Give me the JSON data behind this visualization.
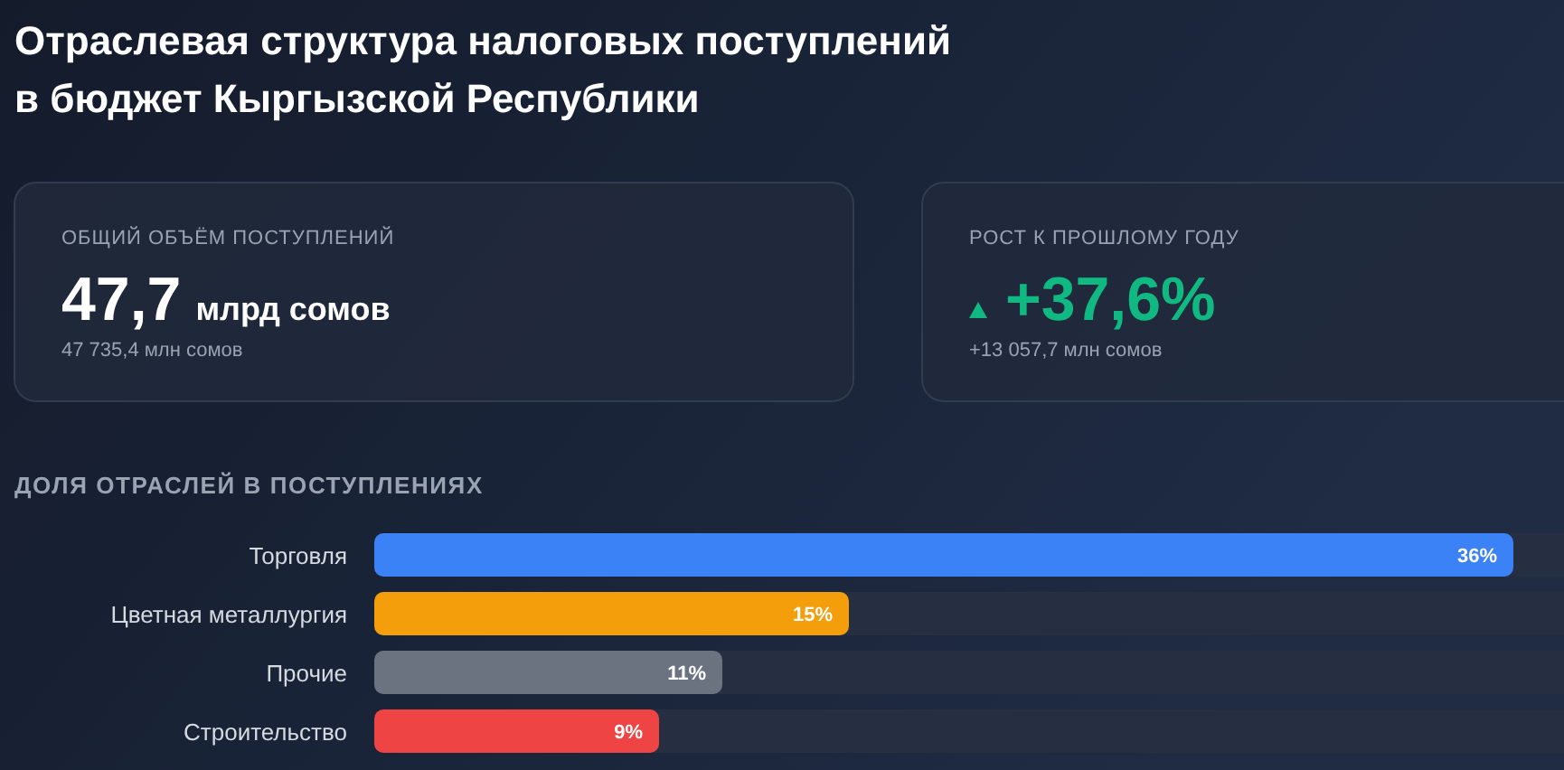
{
  "chart_data": [
    {
      "type": "other",
      "title": "Отраслевая структура налоговых поступлений\nв бюджет Кыргызской Республики"
    },
    {
      "type": "other",
      "title": "ОБЩИЙ ОБЪЁМ ПОСТУПЛЕНИЙ",
      "annotations": [
        "47,7",
        "млрд сомов",
        "47 735,4 млн сомов"
      ]
    },
    {
      "type": "other",
      "title": "РОСТ К ПРОШЛОМУ ГОДУ",
      "color": "#10b981",
      "annotations": [
        "+37,6%",
        "+13 057,7 млн сомов"
      ]
    },
    {
      "type": "bar",
      "orientation": "horizontal",
      "title": "ДОЛЯ ОТРАСЛЕЙ В ПОСТУПЛЕНИЯХ",
      "categories": [
        "Торговля",
        "Цветная металлургия",
        "Прочие",
        "Строительство"
      ],
      "values": [
        36,
        15,
        11,
        9
      ],
      "colors": [
        "#3b82f6",
        "#f59e0b",
        "#6b7280",
        "#ef4444"
      ],
      "value_labels": [
        "36%",
        "15%",
        "11%",
        "9%"
      ]
    }
  ]
}
